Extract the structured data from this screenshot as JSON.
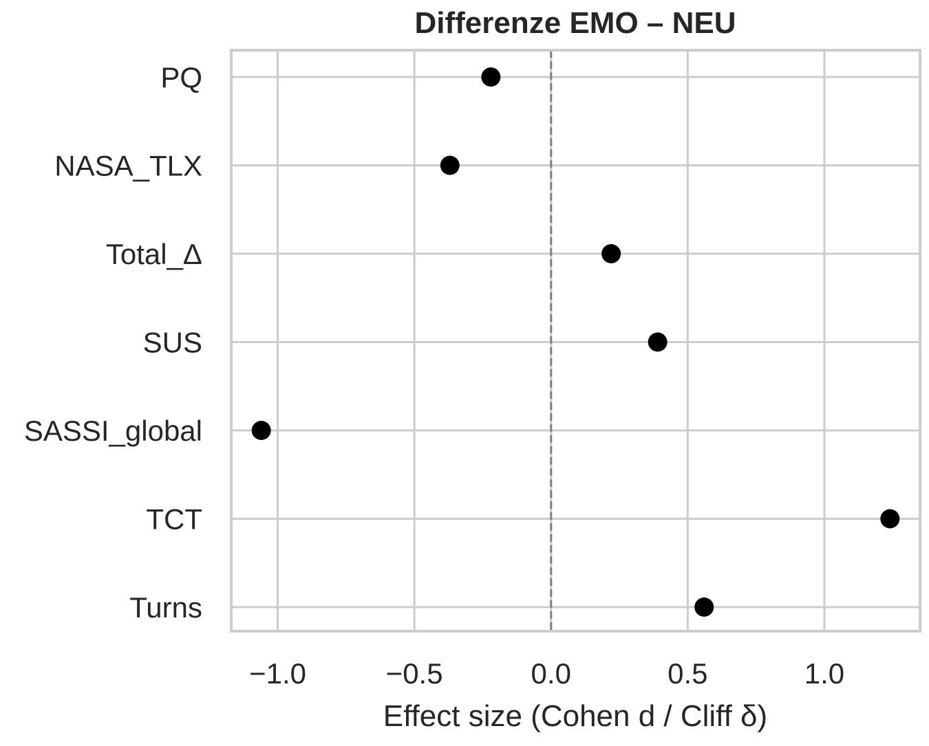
{
  "chart_data": {
    "type": "scatter",
    "title": "Differenze EMO – NEU",
    "xlabel": "Effect size (Cohen d / Cliff δ)",
    "ylabel": "",
    "categories": [
      "PQ",
      "NASA_TLX",
      "Total_Δ",
      "SUS",
      "SASSI_global",
      "TCT",
      "Turns"
    ],
    "values": [
      -0.22,
      -0.37,
      0.22,
      0.39,
      -1.06,
      1.24,
      0.56
    ],
    "xlim": [
      -1.17,
      1.35
    ],
    "xticks": [
      -1.0,
      -0.5,
      0.0,
      0.5,
      1.0
    ],
    "xtick_labels": [
      "−1.0",
      "−0.5",
      "0.0",
      "0.5",
      "1.0"
    ],
    "reference_line": {
      "x": 0.0,
      "style": "dashed",
      "color": "#808080"
    },
    "grid": true,
    "colors": {
      "point": "#000000",
      "grid": "#cccccc",
      "spine": "#cccccc",
      "text": "#262626"
    }
  }
}
